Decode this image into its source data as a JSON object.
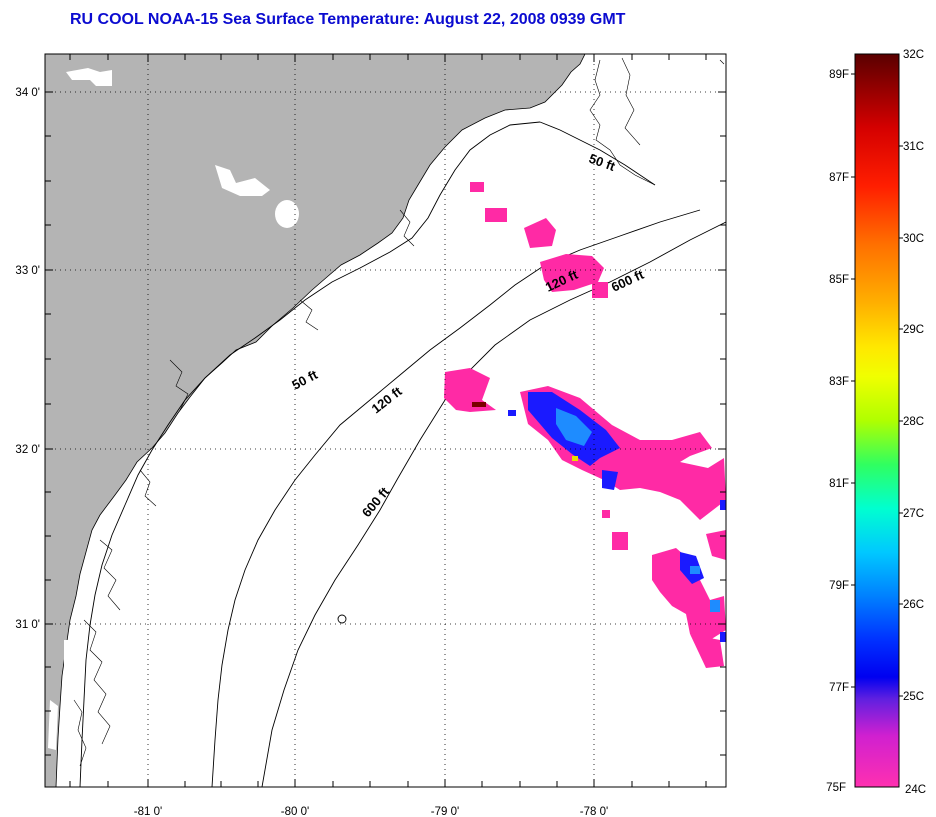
{
  "title": "RU COOL  NOAA-15  Sea Surface Temperature:  August 22, 2008 0939 GMT",
  "map": {
    "lon_labels": [
      "-81 0'",
      "-80 0'",
      "-79 0'",
      "-78 0'"
    ],
    "lat_labels": [
      "34 0'",
      "33 0'",
      "32 0'",
      "31 0'"
    ],
    "contour_labels": [
      "50 ft",
      "120 ft",
      "600 ft",
      "50 ft",
      "120 ft",
      "600 ft"
    ],
    "colors": {
      "land": "#b4b4b4",
      "ocean": "#ffffff",
      "sst_24c": "#ff2aa5",
      "sst_25c": "#1a1aff",
      "sst_26c": "#1e8cff"
    }
  },
  "colorbar": {
    "f_labels": [
      "89F",
      "87F",
      "85F",
      "83F",
      "81F",
      "79F",
      "77F",
      "75F"
    ],
    "c_labels": [
      "32C",
      "31C",
      "30C",
      "29C",
      "28C",
      "27C",
      "26C",
      "25C",
      "24C"
    ]
  }
}
